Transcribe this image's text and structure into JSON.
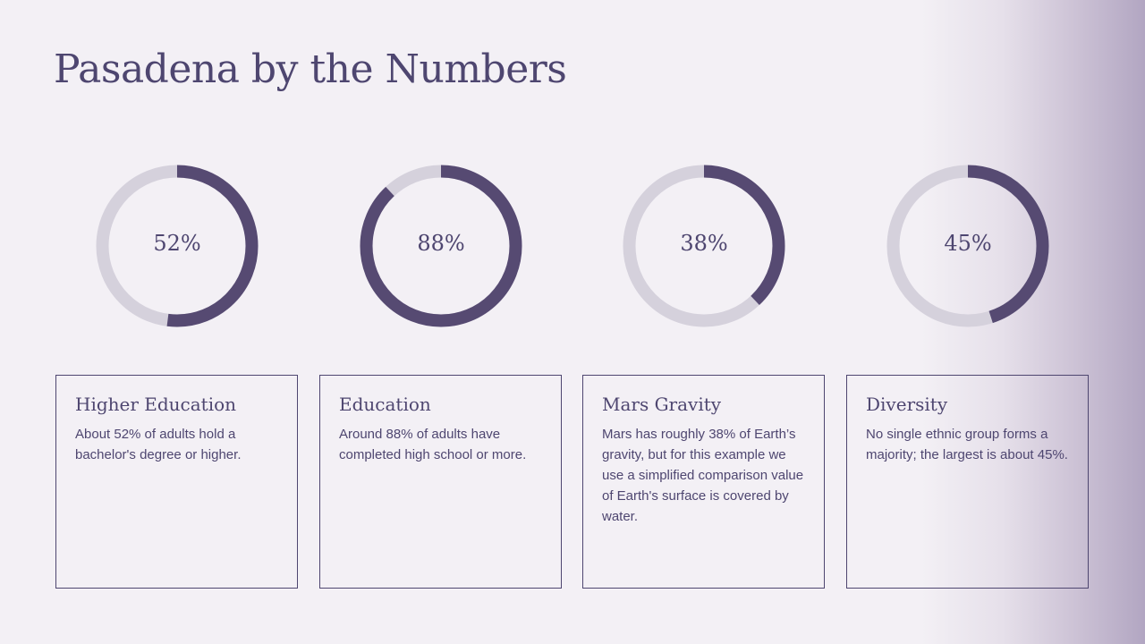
{
  "slide": {
    "title": "Pasadena by the Numbers"
  },
  "colors": {
    "accent": "#564a72",
    "track": "#d5d1dc",
    "text": "#4e4670",
    "background": "#f3f0f5"
  },
  "stats": [
    {
      "value": 52,
      "label": "52%",
      "heading": "Higher Education",
      "description": "About 52% of adults hold a bachelor's degree or higher."
    },
    {
      "value": 88,
      "label": "88%",
      "heading": "Education",
      "description": "Around 88% of adults have completed high school or more."
    },
    {
      "value": 38,
      "label": "38%",
      "heading": "Mars Gravity",
      "description": "Mars has roughly 38% of Earth’s gravity, but for this example we use a simplified comparison value of Earth's surface is covered by water."
    },
    {
      "value": 45,
      "label": "45%",
      "heading": "Diversity",
      "description": "No single ethnic group forms a majority; the largest is about 45%."
    }
  ]
}
